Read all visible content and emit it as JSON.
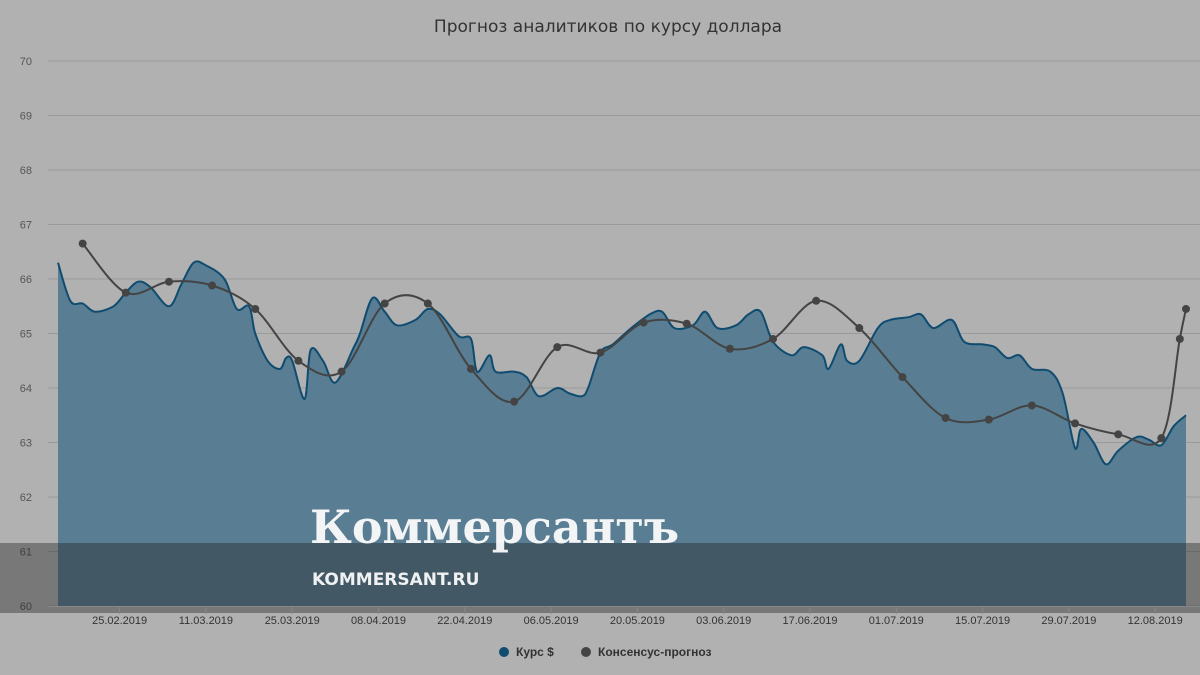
{
  "chart_data": {
    "type": "area",
    "title": "Прогноз аналитиков по курсу доллара",
    "ylim": [
      60,
      70
    ],
    "yticks": [
      "60",
      "61",
      "62",
      "63",
      "64",
      "65",
      "66",
      "67",
      "68",
      "69",
      "70"
    ],
    "x_range": [
      "2019-02-15",
      "2019-08-17"
    ],
    "xticks": [
      "25.02.2019",
      "11.03.2019",
      "25.03.2019",
      "08.04.2019",
      "22.04.2019",
      "06.05.2019",
      "20.05.2019",
      "03.06.2019",
      "17.06.2019",
      "01.07.2019",
      "15.07.2019",
      "29.07.2019",
      "12.08.2019"
    ],
    "grid": true,
    "legend_position": "bottom-center",
    "series": [
      {
        "name": "Курс $",
        "kind": "area",
        "color": "#0f4c70",
        "fill": "#597d92",
        "points": [
          [
            "2019-02-15",
            66.3
          ],
          [
            "2019-02-17",
            65.6
          ],
          [
            "2019-02-19",
            65.55
          ],
          [
            "2019-02-21",
            65.4
          ],
          [
            "2019-02-24",
            65.5
          ],
          [
            "2019-02-26",
            65.75
          ],
          [
            "2019-02-28",
            65.95
          ],
          [
            "2019-03-02",
            65.85
          ],
          [
            "2019-03-05",
            65.5
          ],
          [
            "2019-03-07",
            65.9
          ],
          [
            "2019-03-09",
            66.3
          ],
          [
            "2019-03-11",
            66.25
          ],
          [
            "2019-03-14",
            66.0
          ],
          [
            "2019-03-16",
            65.45
          ],
          [
            "2019-03-18",
            65.5
          ],
          [
            "2019-03-19",
            65.0
          ],
          [
            "2019-03-21",
            64.5
          ],
          [
            "2019-03-23",
            64.35
          ],
          [
            "2019-03-24",
            64.55
          ],
          [
            "2019-03-25",
            64.5
          ],
          [
            "2019-03-27",
            63.8
          ],
          [
            "2019-03-28",
            64.7
          ],
          [
            "2019-03-30",
            64.5
          ],
          [
            "2019-04-01",
            64.1
          ],
          [
            "2019-04-04",
            64.75
          ],
          [
            "2019-04-05",
            65.0
          ],
          [
            "2019-04-07",
            65.65
          ],
          [
            "2019-04-09",
            65.4
          ],
          [
            "2019-04-11",
            65.15
          ],
          [
            "2019-04-14",
            65.25
          ],
          [
            "2019-04-16",
            65.45
          ],
          [
            "2019-04-18",
            65.35
          ],
          [
            "2019-04-21",
            64.95
          ],
          [
            "2019-04-23",
            64.9
          ],
          [
            "2019-04-24",
            64.3
          ],
          [
            "2019-04-26",
            64.6
          ],
          [
            "2019-04-27",
            64.3
          ],
          [
            "2019-04-30",
            64.3
          ],
          [
            "2019-05-02",
            64.2
          ],
          [
            "2019-05-04",
            63.85
          ],
          [
            "2019-05-07",
            64.0
          ],
          [
            "2019-05-09",
            63.9
          ],
          [
            "2019-05-11",
            63.85
          ],
          [
            "2019-05-12",
            64.0
          ],
          [
            "2019-05-14",
            64.65
          ],
          [
            "2019-05-16",
            64.8
          ],
          [
            "2019-05-19",
            65.1
          ],
          [
            "2019-05-22",
            65.35
          ],
          [
            "2019-05-24",
            65.4
          ],
          [
            "2019-05-26",
            65.1
          ],
          [
            "2019-05-29",
            65.15
          ],
          [
            "2019-05-31",
            65.4
          ],
          [
            "2019-06-02",
            65.1
          ],
          [
            "2019-06-05",
            65.15
          ],
          [
            "2019-06-07",
            65.35
          ],
          [
            "2019-06-09",
            65.4
          ],
          [
            "2019-06-11",
            64.85
          ],
          [
            "2019-06-14",
            64.6
          ],
          [
            "2019-06-16",
            64.75
          ],
          [
            "2019-06-19",
            64.6
          ],
          [
            "2019-06-20",
            64.35
          ],
          [
            "2019-06-22",
            64.8
          ],
          [
            "2019-06-23",
            64.5
          ],
          [
            "2019-06-25",
            64.5
          ],
          [
            "2019-06-28",
            65.1
          ],
          [
            "2019-06-30",
            65.25
          ],
          [
            "2019-07-03",
            65.3
          ],
          [
            "2019-07-05",
            65.35
          ],
          [
            "2019-07-07",
            65.1
          ],
          [
            "2019-07-10",
            65.25
          ],
          [
            "2019-07-12",
            64.85
          ],
          [
            "2019-07-15",
            64.8
          ],
          [
            "2019-07-17",
            64.75
          ],
          [
            "2019-07-19",
            64.55
          ],
          [
            "2019-07-21",
            64.6
          ],
          [
            "2019-07-23",
            64.35
          ],
          [
            "2019-07-26",
            64.3
          ],
          [
            "2019-07-28",
            63.9
          ],
          [
            "2019-07-30",
            62.9
          ],
          [
            "2019-07-31",
            63.25
          ],
          [
            "2019-08-02",
            63.0
          ],
          [
            "2019-08-04",
            62.6
          ],
          [
            "2019-08-06",
            62.85
          ],
          [
            "2019-08-09",
            63.1
          ],
          [
            "2019-08-11",
            63.05
          ],
          [
            "2019-08-13",
            62.95
          ],
          [
            "2019-08-15",
            63.3
          ],
          [
            "2019-08-17",
            63.5
          ]
        ]
      },
      {
        "name": "Консенсус-прогноз",
        "kind": "line",
        "color": "#444444",
        "points": [
          [
            "2019-02-19",
            66.65
          ],
          [
            "2019-02-26",
            65.75
          ],
          [
            "2019-03-05",
            65.95
          ],
          [
            "2019-03-12",
            65.88
          ],
          [
            "2019-03-19",
            65.45
          ],
          [
            "2019-03-26",
            64.5
          ],
          [
            "2019-04-02",
            64.3
          ],
          [
            "2019-04-09",
            65.55
          ],
          [
            "2019-04-16",
            65.55
          ],
          [
            "2019-04-23",
            64.35
          ],
          [
            "2019-04-30",
            63.75
          ],
          [
            "2019-05-07",
            64.75
          ],
          [
            "2019-05-14",
            64.65
          ],
          [
            "2019-05-21",
            65.2
          ],
          [
            "2019-05-28",
            65.18
          ],
          [
            "2019-06-04",
            64.72
          ],
          [
            "2019-06-11",
            64.9
          ],
          [
            "2019-06-18",
            65.6
          ],
          [
            "2019-06-25",
            65.1
          ],
          [
            "2019-07-02",
            64.2
          ],
          [
            "2019-07-09",
            63.45
          ],
          [
            "2019-07-16",
            63.42
          ],
          [
            "2019-07-23",
            63.68
          ],
          [
            "2019-07-30",
            63.35
          ],
          [
            "2019-08-06",
            63.15
          ],
          [
            "2019-08-13",
            63.08
          ],
          [
            "2019-08-16",
            64.9
          ],
          [
            "2019-08-17",
            65.45
          ]
        ]
      }
    ],
    "legend": [
      {
        "label": "Курс $",
        "color": "#0f4c70"
      },
      {
        "label": "Консенсус-прогноз",
        "color": "#444444"
      }
    ]
  },
  "watermark": {
    "title": "Коммерсантъ",
    "url": "KOMMERSANT.RU"
  }
}
